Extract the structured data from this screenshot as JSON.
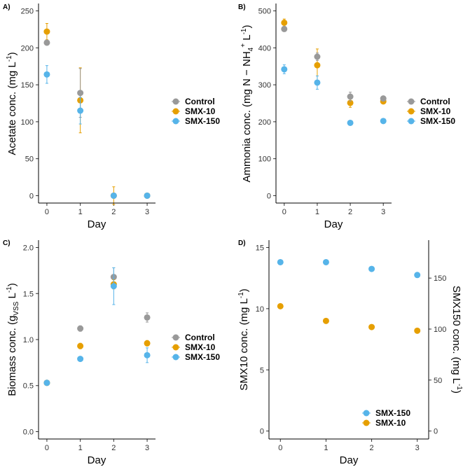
{
  "colors": {
    "Control": "#999999",
    "SMX-10": "#E69F00",
    "SMX-150": "#56B4E9"
  },
  "chart_data": [
    {
      "panel": "A)",
      "type": "scatter",
      "xlabel": "Day",
      "ylabel": "Acetate conc. (mg L",
      "ylabel_sup": "-1",
      "ylabel_tail": ")",
      "x_ticks": [
        "0",
        "1",
        "2",
        "3"
      ],
      "xlim": [
        -0.25,
        3.25
      ],
      "y_ticks": [
        0,
        50,
        100,
        150,
        200,
        250
      ],
      "ylim": [
        -10,
        260
      ],
      "legend": [
        "Control",
        "SMX-10",
        "SMX-150"
      ],
      "series": [
        {
          "name": "SMX-10",
          "x": [
            0,
            1,
            2,
            3
          ],
          "y": [
            222,
            129,
            0,
            0
          ],
          "err": [
            11,
            44,
            12,
            0
          ]
        },
        {
          "name": "Control",
          "x": [
            0,
            1,
            2,
            3
          ],
          "y": [
            207,
            139,
            0,
            0
          ],
          "err": [
            0,
            33,
            0,
            0
          ]
        },
        {
          "name": "SMX-150",
          "x": [
            0,
            1,
            2,
            3
          ],
          "y": [
            164,
            115,
            0,
            0
          ],
          "err": [
            12,
            18,
            0,
            3
          ]
        }
      ]
    },
    {
      "panel": "B)",
      "type": "scatter",
      "xlabel": "Day",
      "ylabel": "Ammonia conc. (mg N − NH",
      "ylabel_sub": "4",
      "ylabel_sup": "+",
      "ylabel_tail": " L",
      "ylabel_sup2": "-1",
      "ylabel_tail2": ")",
      "x_ticks": [
        "0",
        "1",
        "2",
        "3"
      ],
      "xlim": [
        -0.25,
        3.25
      ],
      "y_ticks": [
        0,
        100,
        200,
        300,
        400,
        500
      ],
      "ylim": [
        -20,
        520
      ],
      "legend": [
        "Control",
        "SMX-10",
        "SMX-150"
      ],
      "series": [
        {
          "name": "SMX-10",
          "x": [
            0,
            1,
            2,
            3
          ],
          "y": [
            468,
            353,
            251,
            255
          ],
          "err": [
            10,
            44,
            12,
            5
          ]
        },
        {
          "name": "Control",
          "x": [
            0,
            1,
            2,
            3
          ],
          "y": [
            451,
            376,
            268,
            263
          ],
          "err": [
            6,
            10,
            12,
            5
          ]
        },
        {
          "name": "SMX-150",
          "x": [
            0,
            1,
            2,
            3
          ],
          "y": [
            342,
            306,
            197,
            202
          ],
          "err": [
            12,
            18,
            5,
            4
          ]
        }
      ]
    },
    {
      "panel": "C)",
      "type": "scatter",
      "xlabel": "Day",
      "ylabel": "Biomass conc. (g",
      "ylabel_sub": "VSS",
      "ylabel_tail": " L",
      "ylabel_sup": "-1",
      "ylabel_tail2": ")",
      "x_ticks": [
        "0",
        "1",
        "2",
        "3"
      ],
      "xlim": [
        -0.25,
        3.25
      ],
      "y_ticks": [
        "0.0",
        "0.5",
        "1.0",
        "1.5",
        "2.0"
      ],
      "ylim": [
        -0.08,
        2.08
      ],
      "legend": [
        "Control",
        "SMX-10",
        "SMX-150"
      ],
      "series": [
        {
          "name": "Control",
          "x": [
            0,
            1,
            2,
            3
          ],
          "y": [
            0.53,
            1.12,
            1.68,
            1.24
          ],
          "err": [
            0.01,
            0.03,
            0.1,
            0.05
          ]
        },
        {
          "name": "SMX-10",
          "x": [
            0,
            1,
            2,
            3
          ],
          "y": [
            0.53,
            0.93,
            1.6,
            0.96
          ],
          "err": [
            0.01,
            0.03,
            0.05,
            0.03
          ]
        },
        {
          "name": "SMX-150",
          "x": [
            0,
            1,
            2,
            3
          ],
          "y": [
            0.53,
            0.79,
            1.58,
            0.83
          ],
          "err": [
            0.01,
            0.02,
            0.2,
            0.08
          ]
        }
      ]
    },
    {
      "panel": "D)",
      "type": "scatter",
      "xlabel": "Day",
      "ylabel": "SMX10 conc. (mg L",
      "ylabel_sup": "-1",
      "ylabel_tail": ")",
      "ylabel_right": "SMX150 conc. (mg L",
      "ylabel_right_sup": "-1",
      "ylabel_right_tail": ")",
      "x_ticks": [
        "0",
        "1",
        "2",
        "3"
      ],
      "xlim": [
        -0.25,
        3.25
      ],
      "y_ticks": [
        0,
        5,
        10,
        15
      ],
      "ylim": [
        -0.65,
        15.6
      ],
      "y2_ticks": [
        0,
        50,
        100,
        150
      ],
      "y2_scale": 12,
      "legend": [
        "SMX-150",
        "SMX-10"
      ],
      "series": [
        {
          "name": "SMX-150",
          "axis": "right",
          "x": [
            0,
            1,
            2,
            3
          ],
          "y": [
            165.6,
            165.6,
            159,
            153
          ],
          "err": [
            0,
            0,
            0,
            0
          ]
        },
        {
          "name": "SMX-10",
          "axis": "left",
          "x": [
            0,
            1,
            2,
            3
          ],
          "y": [
            10.2,
            9.0,
            8.5,
            8.2
          ],
          "err": [
            0,
            0,
            0,
            0
          ]
        }
      ]
    }
  ]
}
